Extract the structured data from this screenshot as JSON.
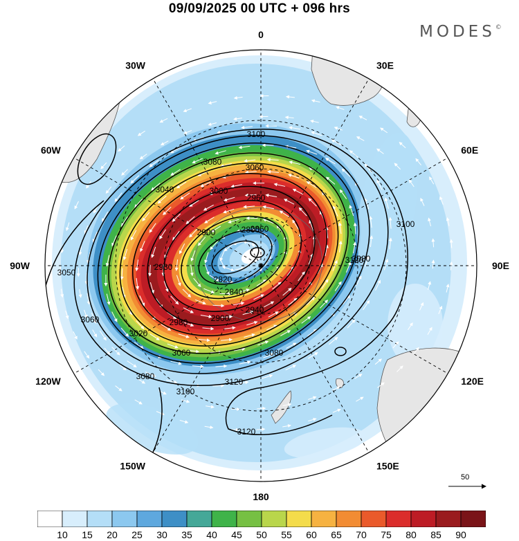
{
  "header": {
    "title": "09/09/2025  00 UTC  + 096 hrs",
    "brand": "MODES",
    "brand_mark": "©"
  },
  "map": {
    "projection": "south polar stereographic",
    "longitude_labels": [
      {
        "text": "0",
        "lon": 0
      },
      {
        "text": "30E",
        "lon": 30
      },
      {
        "text": "60E",
        "lon": 60
      },
      {
        "text": "90E",
        "lon": 90
      },
      {
        "text": "120E",
        "lon": 120
      },
      {
        "text": "150E",
        "lon": 150
      },
      {
        "text": "180",
        "lon": 180
      },
      {
        "text": "150W",
        "lon": -150
      },
      {
        "text": "120W",
        "lon": -120
      },
      {
        "text": "90W",
        "lon": -90
      },
      {
        "text": "60W",
        "lon": -60
      },
      {
        "text": "30W",
        "lon": -30
      }
    ],
    "contour_labels": [
      "3100",
      "3080",
      "3060",
      "3040",
      "3000",
      "2960",
      "2900",
      "2860",
      "2800",
      "2820",
      "2840",
      "2930",
      "3050",
      "3060",
      "3080",
      "3020",
      "2980",
      "2900",
      "2940",
      "3060",
      "3080",
      "3100",
      "3120",
      "3100",
      "3120",
      "3080",
      "3120"
    ],
    "vector_reference": {
      "value": "50"
    },
    "colors": {
      "land": "#e6e6e6",
      "contour": "#000000",
      "vector": "#ffffff"
    }
  },
  "colorbar": {
    "ticks": [
      "10",
      "15",
      "20",
      "25",
      "30",
      "35",
      "40",
      "45",
      "50",
      "55",
      "60",
      "65",
      "70",
      "75",
      "80",
      "85",
      "90"
    ],
    "colors": [
      "#ffffff",
      "#d8eefc",
      "#b4def7",
      "#8cc8ef",
      "#5ea8de",
      "#3e8fc6",
      "#45a898",
      "#3fb349",
      "#76c043",
      "#b9d64b",
      "#f4dc4b",
      "#f6b241",
      "#f28c33",
      "#ea5a2b",
      "#db2d2b",
      "#bd1c25",
      "#9a1b1e",
      "#7a1418"
    ]
  }
}
